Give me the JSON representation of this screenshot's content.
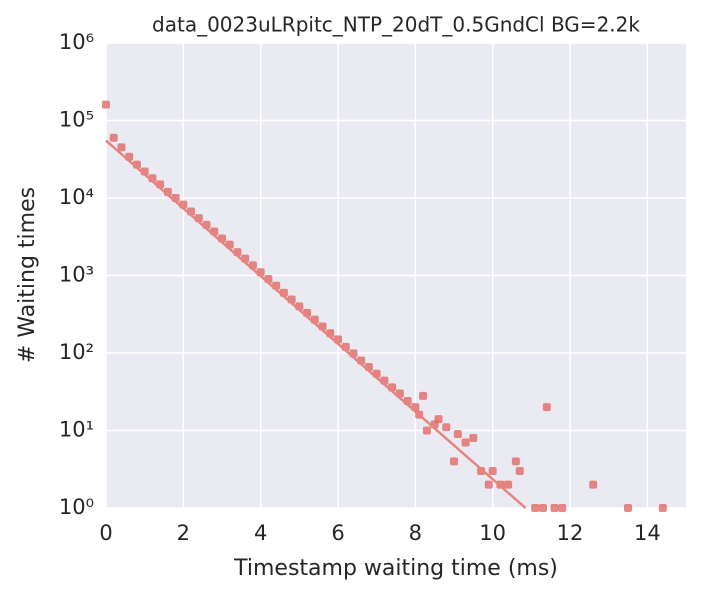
{
  "chart_data": {
    "type": "scatter",
    "title": "data_0023uLRpitc_NTP_20dT_0.5GndCl BG=2.2k",
    "x_label": "Timestamp waiting time (ms)",
    "y_label": "# Waiting times",
    "xlim": [
      0,
      15
    ],
    "xticks": [
      0,
      2,
      4,
      6,
      8,
      10,
      12,
      14
    ],
    "ylim": [
      1,
      1000000
    ],
    "yticks": [
      {
        "value": 1,
        "label": "10⁰"
      },
      {
        "value": 10,
        "label": "10¹"
      },
      {
        "value": 100,
        "label": "10²"
      },
      {
        "value": 1000,
        "label": "10³"
      },
      {
        "value": 10000,
        "label": "10⁴"
      },
      {
        "value": 100000,
        "label": "10⁵"
      },
      {
        "value": 1000000,
        "label": "10⁶"
      }
    ],
    "y_log": true,
    "grid": true,
    "series": [
      {
        "type": "scatter",
        "color": "#e0605c",
        "x": [
          0,
          0.2,
          0.4,
          0.6,
          0.8,
          1.0,
          1.2,
          1.4,
          1.6,
          1.8,
          2.0,
          2.2,
          2.4,
          2.6,
          2.8,
          3.0,
          3.2,
          3.4,
          3.6,
          3.8,
          4.0,
          4.2,
          4.4,
          4.6,
          4.8,
          5.0,
          5.2,
          5.4,
          5.6,
          5.8,
          6.0,
          6.2,
          6.4,
          6.6,
          6.8,
          7.0,
          7.2,
          7.4,
          7.6,
          7.8,
          8.0,
          8.1,
          8.2,
          8.3,
          8.5,
          8.6,
          8.8,
          9.0,
          9.1,
          9.3,
          9.5,
          9.7,
          9.9,
          10.0,
          10.2,
          10.4,
          10.6,
          10.7,
          11.1,
          11.3,
          11.4,
          11.6,
          11.8,
          12.6,
          13.5,
          14.4
        ],
        "values": [
          160000,
          60000,
          45000,
          34000,
          27000,
          22000,
          18000,
          15000,
          12000,
          10000,
          8200,
          6700,
          5500,
          4500,
          3700,
          3000,
          2500,
          2000,
          1650,
          1350,
          1100,
          900,
          740,
          600,
          490,
          400,
          330,
          270,
          220,
          180,
          150,
          120,
          99,
          80,
          66,
          54,
          44,
          36,
          30,
          24,
          20,
          16,
          28,
          10,
          12,
          14,
          11,
          4,
          9,
          7,
          8,
          3,
          2,
          3,
          2,
          2,
          4,
          3,
          1,
          1,
          20,
          1,
          1,
          2,
          1,
          1
        ]
      },
      {
        "type": "line",
        "color": "#e8847e",
        "x": [
          0,
          10.85
        ],
        "values": [
          55000,
          1
        ]
      }
    ]
  }
}
